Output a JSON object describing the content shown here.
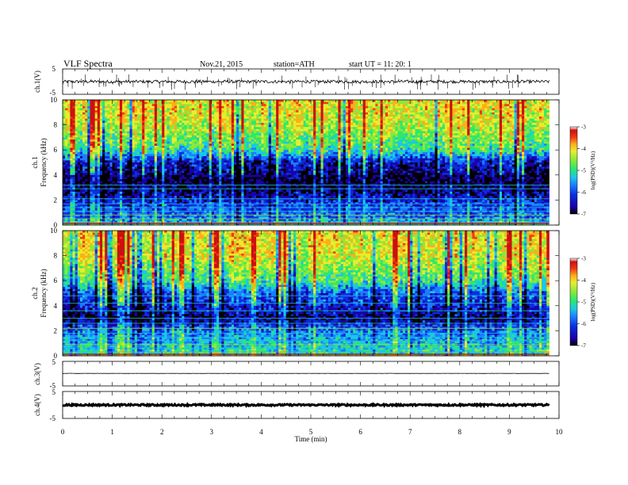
{
  "header": {
    "title": "VLF Spectra",
    "date": "Nov.21, 2015",
    "station": "station=ATH",
    "start": "start UT =  11: 20: 1"
  },
  "colors": {
    "colormap": [
      "#000000",
      "#1a00a8",
      "#0a2ee0",
      "#1c7cff",
      "#19c8e6",
      "#2ee86a",
      "#8ee83a",
      "#e6ee2c",
      "#ffae1a",
      "#f03a14",
      "#cc1010",
      "#ffffff"
    ],
    "trace": "#000000"
  },
  "chart_data": [
    {
      "type": "line",
      "panel": "ch1-waveform",
      "ylabel": "ch.1(V)",
      "ylim": [
        -5,
        5
      ],
      "yticks": [
        5,
        -5
      ],
      "xlim": [
        0,
        10
      ],
      "baseline": 0,
      "noise_band": [
        -0.6,
        0.6
      ],
      "spike_range": [
        -3.3,
        3
      ]
    },
    {
      "type": "heatmap",
      "panel": "ch1-spectrogram",
      "ylabel": "ch.1",
      "ylabel2": "Frequency (kHz)",
      "ylim": [
        0,
        10
      ],
      "yticks": [
        0,
        2,
        4,
        6,
        8,
        10
      ],
      "xlim": [
        0,
        9.8
      ],
      "colorbar": {
        "label": "log(PSD)(V²/Hz)",
        "range": [
          -7,
          -3
        ],
        "ticks": [
          -3,
          -4,
          -5,
          -6,
          -7
        ]
      },
      "profile": [
        {
          "f": 10,
          "log_psd": -4.2
        },
        {
          "f": 8,
          "log_psd": -4.4
        },
        {
          "f": 6,
          "log_psd": -5.1
        },
        {
          "f": 5,
          "log_psd": -6.3
        },
        {
          "f": 3.5,
          "log_psd": -6.8
        },
        {
          "f": 2.5,
          "log_psd": -6.5
        },
        {
          "f": 1.5,
          "log_psd": -6.0
        },
        {
          "f": 0.5,
          "log_psd": -5.8
        },
        {
          "f": 0,
          "log_psd": -5.0
        }
      ],
      "tonal_lines_khz": [
        0.2,
        0.5,
        0.8,
        1.1,
        1.4,
        1.7,
        2.1,
        2.9,
        3.2
      ]
    },
    {
      "type": "heatmap",
      "panel": "ch2-spectrogram",
      "ylabel": "ch.2",
      "ylabel2": "Frequency (kHz)",
      "ylim": [
        0,
        10
      ],
      "yticks": [
        0,
        2,
        4,
        6,
        8,
        10
      ],
      "xlim": [
        0,
        9.8
      ],
      "colorbar": {
        "label": "log(PSD)(V²/Hz)",
        "range": [
          -7,
          -3
        ],
        "ticks": [
          -3,
          -4,
          -5,
          -6,
          -7
        ]
      },
      "profile": [
        {
          "f": 10,
          "log_psd": -4.2
        },
        {
          "f": 8,
          "log_psd": -4.3
        },
        {
          "f": 6,
          "log_psd": -5.0
        },
        {
          "f": 5,
          "log_psd": -5.9
        },
        {
          "f": 4,
          "log_psd": -6.2
        },
        {
          "f": 3,
          "log_psd": -6.6
        },
        {
          "f": 2,
          "log_psd": -5.7
        },
        {
          "f": 1,
          "log_psd": -5.4
        },
        {
          "f": 0,
          "log_psd": -5.0
        }
      ],
      "tonal_lines_khz": [
        0.3,
        0.6,
        0.9,
        1.2,
        1.5,
        1.8,
        2.2,
        2.6,
        3.0,
        3.6,
        4.2,
        4.8
      ]
    },
    {
      "type": "line",
      "panel": "ch3-waveform",
      "ylabel": "ch.3(V)",
      "ylim": [
        -5,
        5
      ],
      "yticks": [
        5,
        -5
      ],
      "xlim": [
        0,
        10
      ],
      "baseline": 0.1,
      "noise_band": [
        -0.05,
        0.05
      ]
    },
    {
      "type": "line",
      "panel": "ch4-waveform",
      "ylabel": "ch.4(V)",
      "ylim": [
        -5,
        5
      ],
      "yticks": [
        5,
        -5
      ],
      "xlim": [
        0,
        10
      ],
      "baseline": 0,
      "noise_band": [
        -0.3,
        0.3
      ]
    },
    {
      "type": "axis",
      "panel": "time-axis",
      "xlabel": "Time (min)",
      "xlim": [
        0,
        10
      ],
      "xticks": [
        0,
        1,
        2,
        3,
        4,
        5,
        6,
        7,
        8,
        9,
        10
      ]
    }
  ]
}
